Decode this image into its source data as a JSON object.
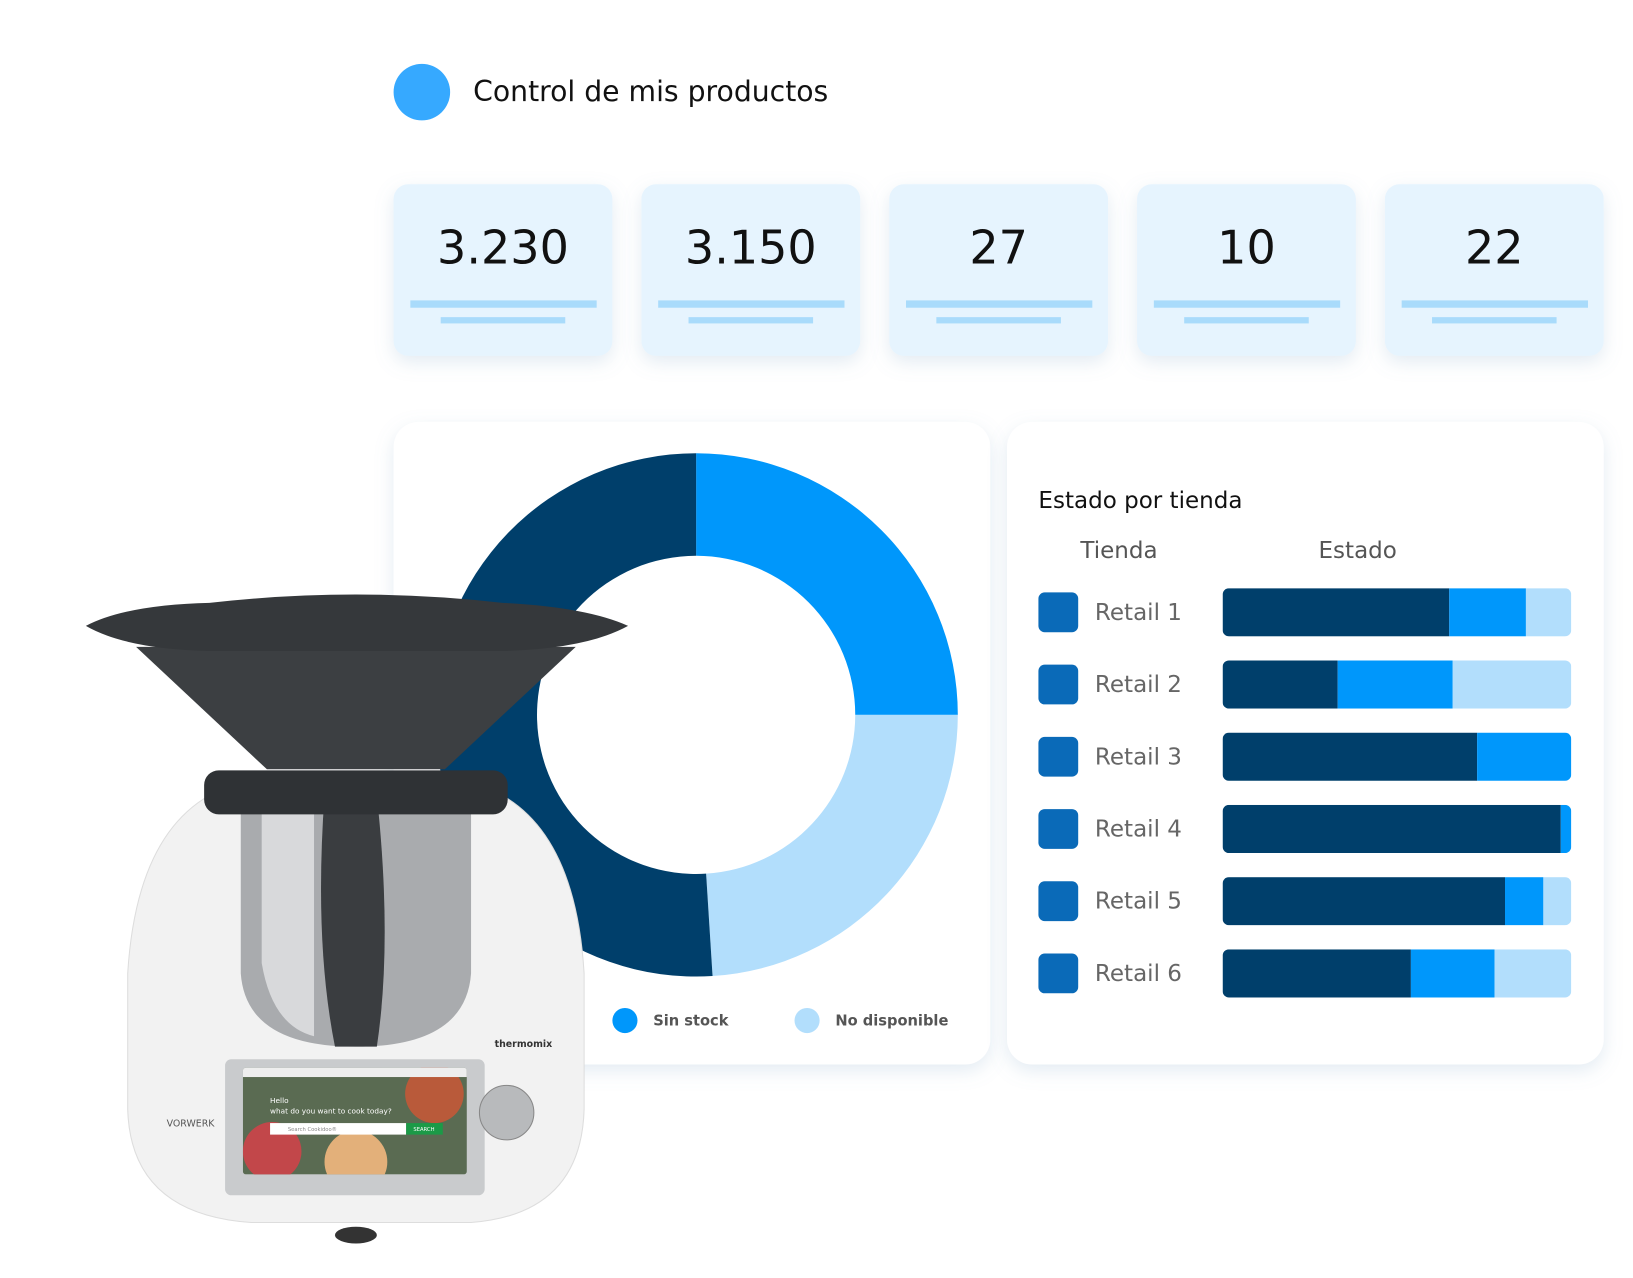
{
  "header": {
    "title": "Control de mis productos"
  },
  "kpis": [
    "3.230",
    "3.150",
    "27",
    "10",
    "22"
  ],
  "donut": {
    "type": "donut",
    "segments": [
      {
        "name": "Sin stock",
        "color": "#0097fb",
        "value": 25
      },
      {
        "name": "No disponible",
        "color": "#b2defc",
        "value": 24
      },
      {
        "color": "#003f6b",
        "value": 51
      }
    ]
  },
  "status": {
    "title": "Estado por tienda",
    "columns": [
      "Tienda",
      "Estado"
    ],
    "colors": [
      "#003f6b",
      "#0097fb",
      "#b2defc"
    ],
    "xlim": [
      0,
      100
    ],
    "rows": [
      {
        "label": "Retail 1",
        "values": [
          65,
          22,
          13
        ]
      },
      {
        "label": "Retail 2",
        "values": [
          33,
          33,
          34
        ]
      },
      {
        "label": "Retail 3",
        "values": [
          73,
          27,
          0
        ]
      },
      {
        "label": "Retail 4",
        "values": [
          97,
          3,
          0
        ]
      },
      {
        "label": "Retail 5",
        "values": [
          81,
          11,
          8
        ]
      },
      {
        "label": "Retail 6",
        "values": [
          54,
          24,
          22
        ]
      }
    ]
  },
  "device": {
    "brand": "thermomix",
    "maker": "VORWERK",
    "greeting": "Hello",
    "prompt": "what do you want to cook today?",
    "search_placeholder": "Search Cookidoo®",
    "search_button": "SEARCH"
  }
}
